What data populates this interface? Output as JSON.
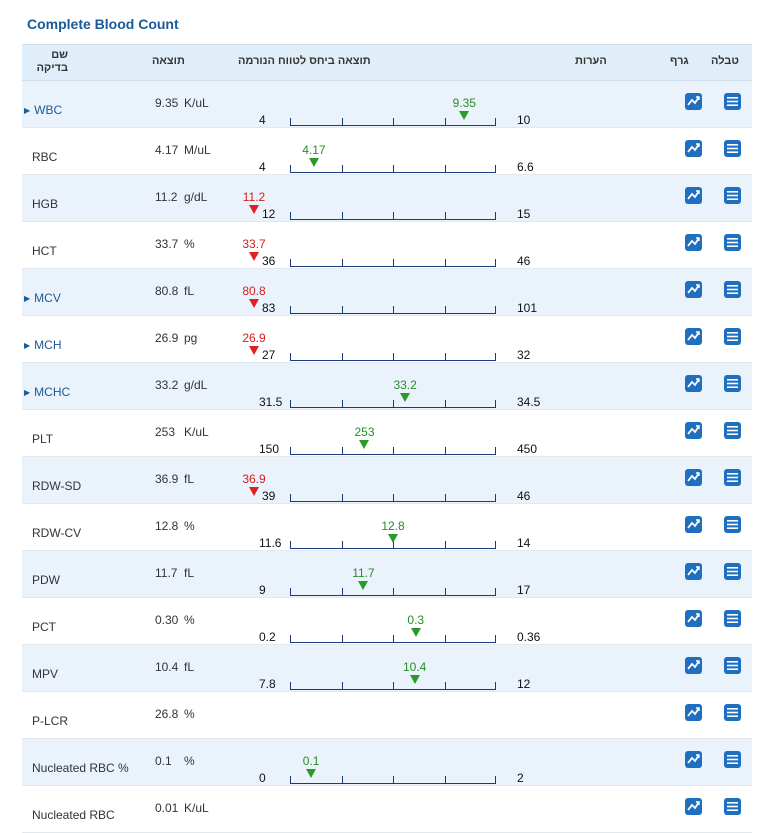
{
  "title": "Complete Blood Count",
  "header": {
    "name": "שם בדיקה",
    "result": "תוצאה",
    "range": "תוצאה ביחס לטווח הנורמה",
    "notes": "הערות",
    "graph": "גרף",
    "table": "טבלה"
  },
  "rows": [
    {
      "name": "WBC",
      "link": true,
      "result": "9.35",
      "unit": "K/uL",
      "low": "4",
      "high": "10",
      "lowNum": 4,
      "highNum": 10,
      "value": 9.35,
      "value_label": "9.35",
      "status": "normal"
    },
    {
      "name": "RBC",
      "link": false,
      "result": "4.17",
      "unit": "M/uL",
      "low": "4",
      "high": "6.6",
      "lowNum": 4,
      "highNum": 6.6,
      "value": 4.17,
      "value_label": "4.17",
      "status": "normal"
    },
    {
      "name": "HGB",
      "link": false,
      "result": "11.2",
      "unit": "g/dL",
      "low": "12",
      "high": "15",
      "lowNum": 12,
      "highNum": 15,
      "value": 11.2,
      "value_label": "11.2",
      "status": "low"
    },
    {
      "name": "HCT",
      "link": false,
      "result": "33.7",
      "unit": "%",
      "low": "36",
      "high": "46",
      "lowNum": 36,
      "highNum": 46,
      "value": 33.7,
      "value_label": "33.7",
      "status": "low"
    },
    {
      "name": "MCV",
      "link": true,
      "result": "80.8",
      "unit": "fL",
      "low": "83",
      "high": "101",
      "lowNum": 83,
      "highNum": 101,
      "value": 80.8,
      "value_label": "80.8",
      "status": "low"
    },
    {
      "name": "MCH",
      "link": true,
      "result": "26.9",
      "unit": "pg",
      "low": "27",
      "high": "32",
      "lowNum": 27,
      "highNum": 32,
      "value": 26.9,
      "value_label": "26.9",
      "status": "low"
    },
    {
      "name": "MCHC",
      "link": true,
      "result": "33.2",
      "unit": "g/dL",
      "low": "31.5",
      "high": "34.5",
      "lowNum": 31.5,
      "highNum": 34.5,
      "value": 33.2,
      "value_label": "33.2",
      "status": "normal"
    },
    {
      "name": "PLT",
      "link": false,
      "result": "253",
      "unit": "K/uL",
      "low": "150",
      "high": "450",
      "lowNum": 150,
      "highNum": 450,
      "value": 253,
      "value_label": "253",
      "status": "normal"
    },
    {
      "name": "RDW-SD",
      "link": false,
      "result": "36.9",
      "unit": "fL",
      "low": "39",
      "high": "46",
      "lowNum": 39,
      "highNum": 46,
      "value": 36.9,
      "value_label": "36.9",
      "status": "low"
    },
    {
      "name": "RDW-CV",
      "link": false,
      "result": "12.8",
      "unit": "%",
      "low": "11.6",
      "high": "14",
      "lowNum": 11.6,
      "highNum": 14,
      "value": 12.8,
      "value_label": "12.8",
      "status": "normal"
    },
    {
      "name": "PDW",
      "link": false,
      "result": "11.7",
      "unit": "fL",
      "low": "9",
      "high": "17",
      "lowNum": 9,
      "highNum": 17,
      "value": 11.7,
      "value_label": "11.7",
      "status": "normal"
    },
    {
      "name": "PCT",
      "link": false,
      "result": "0.30",
      "unit": "%",
      "low": "0.2",
      "high": "0.36",
      "lowNum": 0.2,
      "highNum": 0.36,
      "value": 0.3,
      "value_label": "0.3",
      "status": "normal"
    },
    {
      "name": "MPV",
      "link": false,
      "result": "10.4",
      "unit": "fL",
      "low": "7.8",
      "high": "12",
      "lowNum": 7.8,
      "highNum": 12,
      "value": 10.4,
      "value_label": "10.4",
      "status": "normal"
    },
    {
      "name": "P-LCR",
      "link": false,
      "result": "26.8",
      "unit": "%",
      "low": null,
      "high": null,
      "value": null,
      "status": "none"
    },
    {
      "name": "Nucleated RBC %",
      "link": false,
      "result": "0.1",
      "unit": "%",
      "low": "0",
      "high": "2",
      "lowNum": 0,
      "highNum": 2,
      "value": 0.1,
      "value_label": "0.1",
      "status": "normal"
    },
    {
      "name": "Nucleated RBC",
      "link": false,
      "result": "0.01",
      "unit": "K/uL",
      "low": null,
      "high": null,
      "value": null,
      "status": "none"
    }
  ],
  "icons": {
    "graph": "line-chart-icon",
    "table": "list-icon"
  },
  "colors": {
    "accent": "#1a5a96",
    "normal": "#2b9a2b",
    "abnormal": "#e02020",
    "header_bg": "#dfeef8",
    "row_alt": "#eaf3fb"
  }
}
